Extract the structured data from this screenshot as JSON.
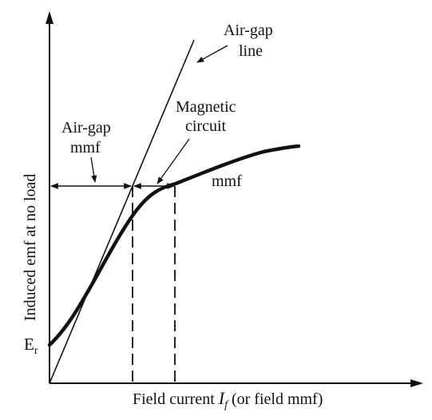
{
  "labels": {
    "air_gap_line_1": "Air-gap",
    "air_gap_line_2": "line",
    "magnetic_circuit_1": "Magnetic",
    "magnetic_circuit_2": "circuit",
    "air_gap_mmf_1": "Air-gap",
    "air_gap_mmf_2": "mmf",
    "mmf": "mmf",
    "y_axis": "Induced emf at no load",
    "er_main": "E",
    "er_sub": "r",
    "x_axis_prefix": "Field current ",
    "x_axis_symbol": "I",
    "x_axis_sub": "f",
    "x_axis_suffix": " (or field mmf)"
  },
  "colors": {
    "ink": "#111111",
    "background": "#ffffff"
  }
}
